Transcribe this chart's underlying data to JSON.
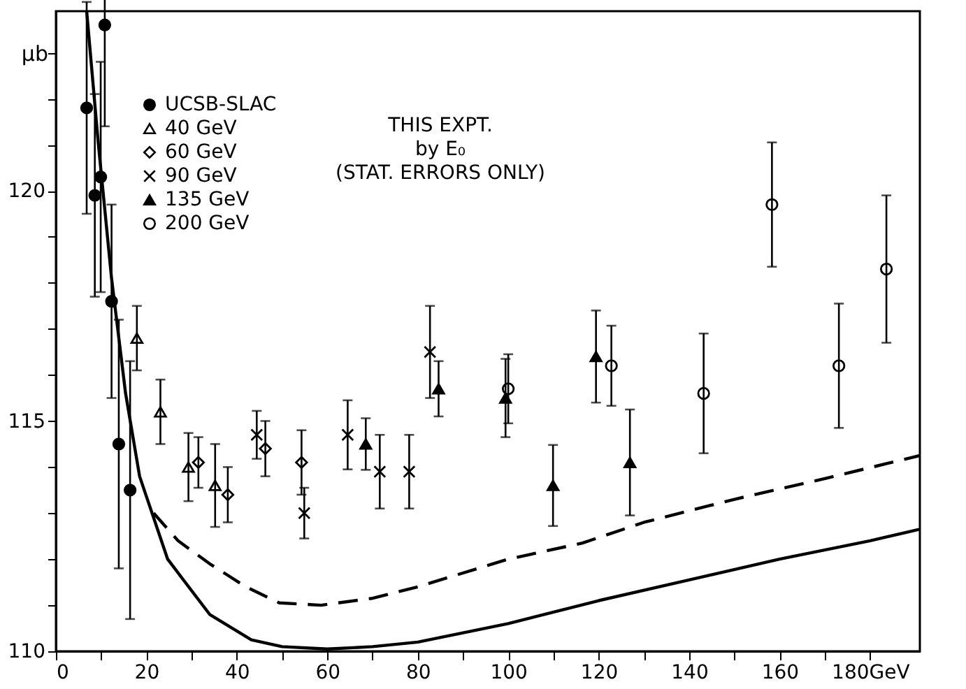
{
  "chart_data": {
    "type": "scatter",
    "ylabel": "μb",
    "xlim": [
      0,
      191
    ],
    "ylim": [
      110,
      123.9
    ],
    "xticks": [
      0,
      {
        "value": 10,
        "label": null
      },
      20,
      {
        "value": 30,
        "label": null
      },
      40,
      {
        "value": 50,
        "label": null
      },
      60,
      {
        "value": 70,
        "label": null
      },
      80,
      {
        "value": 90,
        "label": null
      },
      100,
      {
        "value": 110,
        "label": null
      },
      120,
      {
        "value": 130,
        "label": null
      },
      140,
      {
        "value": 150,
        "label": null
      },
      160,
      {
        "value": 170,
        "label": null
      },
      {
        "value": 180,
        "label": "180GeV"
      }
    ],
    "yticks": [
      110,
      {
        "value": 111,
        "label": null
      },
      {
        "value": 112,
        "label": null
      },
      {
        "value": 113,
        "label": null
      },
      {
        "value": 114,
        "label": null
      },
      115,
      {
        "value": 116,
        "label": null
      },
      {
        "value": 117,
        "label": null
      },
      {
        "value": 118,
        "label": null
      },
      {
        "value": 119,
        "label": null
      },
      120,
      {
        "value": 121,
        "label": null
      },
      {
        "value": 122,
        "label": null
      },
      {
        "value": 123,
        "label": null
      }
    ],
    "grid": false,
    "legend": "top left",
    "annotations": [
      "THIS EXPT.\nby E₀\n(STAT. ERRORS ONLY)"
    ],
    "series": [
      {
        "name": "UCSB-SLAC",
        "marker": "circle",
        "color": "#000000",
        "x": [
          6.8,
          8.6,
          9.9,
          10.8,
          12.3,
          13.9,
          16.4
        ],
        "values": [
          121.8,
          119.9,
          120.3,
          123.6,
          117.6,
          114.5,
          113.5
        ],
        "errors": [
          2.3,
          2.2,
          2.5,
          2.2,
          2.1,
          2.7,
          2.8
        ]
      },
      {
        "name": "40 GeV",
        "marker": "triangle",
        "color": "#ffffff",
        "x": [
          17.9,
          23.1,
          29.3,
          35.2
        ],
        "values": [
          116.8,
          115.2,
          114.0,
          113.6
        ],
        "errors": [
          0.7,
          0.7,
          0.74,
          0.9
        ]
      },
      {
        "name": "60 GeV",
        "marker": "diamond",
        "color": "#ffffff",
        "x": [
          31.5,
          38.0,
          46.3,
          54.3
        ],
        "values": [
          114.1,
          113.4,
          114.4,
          114.1
        ],
        "errors": [
          0.55,
          0.6,
          0.6,
          0.7
        ]
      },
      {
        "name": "90 GeV",
        "marker": "cross",
        "color": "#000000",
        "x": [
          44.4,
          54.9,
          64.5,
          71.6,
          78.1,
          82.7
        ],
        "values": [
          114.7,
          113.0,
          114.7,
          113.9,
          113.9,
          116.5
        ],
        "errors": [
          0.52,
          0.55,
          0.75,
          0.8,
          0.8,
          1.0
        ]
      },
      {
        "name": "135 GeV",
        "marker": "triangle",
        "color": "#000000",
        "x": [
          68.5,
          84.6,
          99.4,
          109.9,
          119.4,
          126.9
        ],
        "values": [
          114.5,
          115.7,
          115.5,
          113.6,
          116.4,
          114.1
        ],
        "errors": [
          0.56,
          0.6,
          0.85,
          0.88,
          1.0,
          1.15
        ]
      },
      {
        "name": "200 GeV",
        "marker": "circle",
        "color": "#ffffff",
        "x": [
          100.0,
          122.8,
          143.2,
          158.3,
          173.1,
          183.6
        ],
        "values": [
          115.7,
          116.2,
          115.6,
          119.7,
          116.2,
          118.3
        ],
        "errors": [
          0.75,
          0.87,
          1.3,
          1.35,
          1.35,
          1.6
        ]
      },
      {
        "type": "line",
        "line_style": "solid",
        "marker": "none",
        "color": "#000000",
        "x": [
          6.8,
          9.3,
          12.3,
          15.4,
          18.5,
          24.7,
          34,
          43.2,
          50,
          60,
          70,
          80,
          100,
          120,
          140,
          160,
          180,
          191
        ],
        "values": [
          123.9,
          121.1,
          118.1,
          115.6,
          113.8,
          112.0,
          110.8,
          110.25,
          110.1,
          110.05,
          110.1,
          110.2,
          110.6,
          111.1,
          111.55,
          112.0,
          112.4,
          112.65
        ]
      },
      {
        "type": "line",
        "line_style": "dashed",
        "marker": "none",
        "color": "#000000",
        "x": [
          21.6,
          27,
          34,
          42,
          49.4,
          58.6,
          70,
          80,
          100,
          116.4,
          130,
          150,
          170,
          191
        ],
        "values": [
          113.0,
          112.4,
          111.9,
          111.4,
          111.05,
          111.0,
          111.15,
          111.4,
          112.0,
          112.35,
          112.8,
          113.3,
          113.75,
          114.25
        ]
      }
    ]
  }
}
